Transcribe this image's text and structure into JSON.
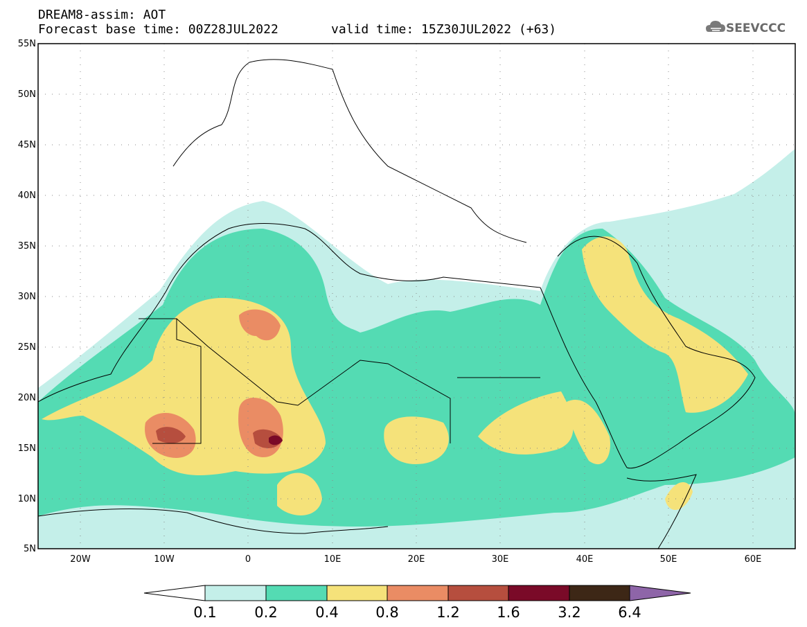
{
  "header": {
    "model_line": "DREAM8-assim: AOT",
    "base_time_line": "Forecast base time: 00Z28JUL2022",
    "valid_time_line": "valid time: 15Z30JUL2022 (+63)"
  },
  "logo": {
    "text": "SEEVCCC",
    "icon": "cloud-icon"
  },
  "map": {
    "latitude_labels": [
      "55N",
      "50N",
      "45N",
      "40N",
      "35N",
      "30N",
      "25N",
      "20N",
      "15N",
      "10N",
      "5N"
    ],
    "longitude_labels": [
      "20W",
      "10W",
      "0",
      "10E",
      "20E",
      "30E",
      "40E",
      "50E",
      "60E"
    ],
    "gridlines": "dotted"
  },
  "colorbar": {
    "labels": [
      "0.1",
      "0.2",
      "0.4",
      "0.8",
      "1.2",
      "1.6",
      "3.2",
      "6.4"
    ],
    "colors": [
      "#ffffff",
      "#c4efe9",
      "#54dbb3",
      "#f5e27a",
      "#ea8c64",
      "#b64e3e",
      "#7a0a28",
      "#3d2716",
      "#8e65a8"
    ]
  }
}
